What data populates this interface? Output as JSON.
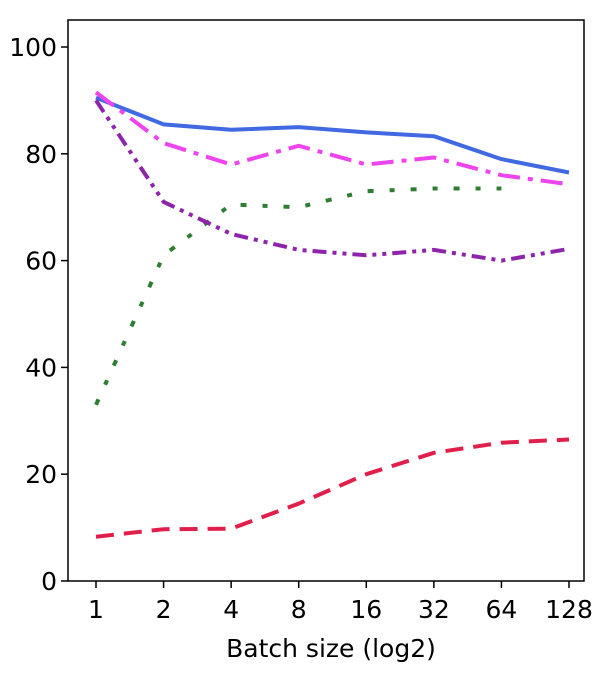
{
  "chart_data": {
    "type": "line",
    "title": "",
    "xlabel": "Batch size (log2)",
    "ylabel": "",
    "categories": [
      "1",
      "2",
      "4",
      "8",
      "16",
      "32",
      "64",
      "128"
    ],
    "ylim": [
      0,
      100
    ],
    "yticks": [
      "0",
      "20",
      "40",
      "60",
      "80",
      "100"
    ],
    "grid": false,
    "legend": "none",
    "series": [
      {
        "color": "#4169e1",
        "style": "solid",
        "values": [
          90.5,
          85.5,
          84.5,
          85.0,
          84.0,
          83.3,
          79.0,
          76.5
        ]
      },
      {
        "color": "#ee44ee",
        "style": "dashdot",
        "values": [
          91.5,
          82.0,
          78.0,
          81.5,
          78.0,
          79.3,
          76.0,
          74.3
        ]
      },
      {
        "color": "#2e7d32",
        "style": "dashdot-sparse",
        "values": [
          33.0,
          61.0,
          70.5,
          70.0,
          73.0,
          73.5,
          73.5,
          null
        ]
      },
      {
        "color": "#8e24aa",
        "style": "dashdotdot",
        "values": [
          90.0,
          71.0,
          65.0,
          62.0,
          61.0,
          62.0,
          60.0,
          62.2
        ]
      },
      {
        "color": "#e0204a",
        "style": "dashed",
        "values": [
          8.3,
          9.7,
          9.8,
          14.5,
          20.0,
          24.0,
          25.9,
          26.5
        ]
      }
    ]
  }
}
